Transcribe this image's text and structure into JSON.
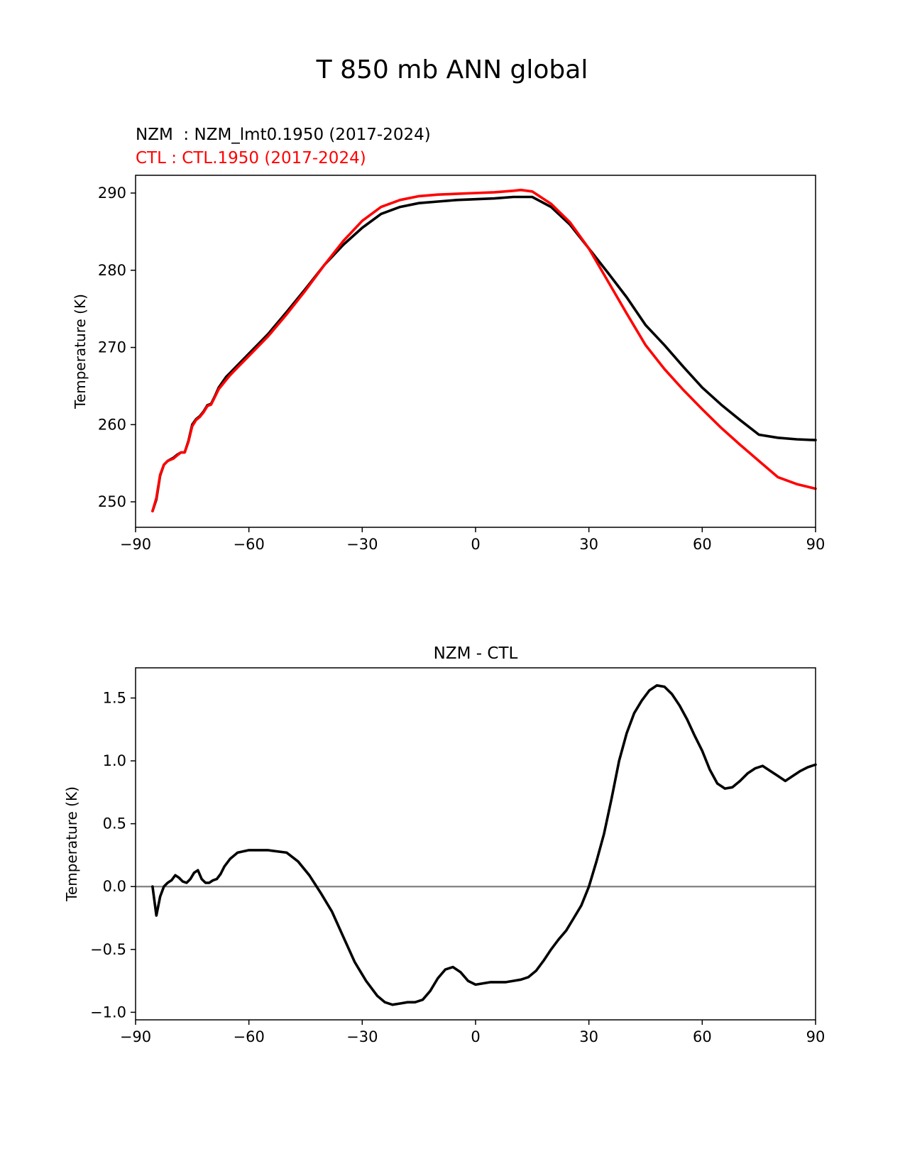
{
  "figure": {
    "title": "T 850 mb ANN global"
  },
  "chart_data": [
    {
      "type": "line",
      "legend": [
        {
          "label": "NZM  : NZM_lmt0.1950 (2017-2024)",
          "color": "#000000"
        },
        {
          "label": "CTL : CTL.1950 (2017-2024)",
          "color": "#ff0000"
        }
      ],
      "ylabel": "Temperature (K)",
      "xlim": [
        -90,
        90
      ],
      "ylim": [
        246.7,
        292.3
      ],
      "xticks": [
        -90,
        -60,
        -30,
        0,
        30,
        60,
        90
      ],
      "xtick_labels": [
        "−90",
        "−60",
        "−30",
        "0",
        "30",
        "60",
        "90"
      ],
      "yticks": [
        250,
        260,
        270,
        280,
        290
      ],
      "ytick_labels": [
        "250",
        "260",
        "270",
        "280",
        "290"
      ],
      "series": [
        {
          "name": "CTL",
          "color": "#ff0000",
          "x": [
            -85.5,
            -84.5,
            -83.5,
            -82.5,
            -81.5,
            -80,
            -79,
            -78,
            -77,
            -76,
            -75,
            -74,
            -73,
            -72,
            -71,
            -70,
            -69,
            -68,
            -67,
            -66,
            -65,
            -63,
            -60,
            -55,
            -50,
            -45,
            -40,
            -35,
            -30,
            -25,
            -20,
            -15,
            -10,
            -5,
            0,
            5,
            10,
            12,
            15,
            20,
            25,
            30,
            35,
            40,
            45,
            50,
            55,
            60,
            65,
            70,
            75,
            80,
            85,
            90
          ],
          "y": [
            248.8,
            250.5,
            253.5,
            254.8,
            255.3,
            255.6,
            256.0,
            256.4,
            256.4,
            257.8,
            259.8,
            260.6,
            261.0,
            261.6,
            262.4,
            262.6,
            263.6,
            264.6,
            265.2,
            265.8,
            266.4,
            267.4,
            268.9,
            271.4,
            274.3,
            277.4,
            280.7,
            283.8,
            286.4,
            288.2,
            289.1,
            289.6,
            289.8,
            289.9,
            290.0,
            290.1,
            290.3,
            290.4,
            290.2,
            288.6,
            286.2,
            282.8,
            278.6,
            274.4,
            270.3,
            267.2,
            264.5,
            262.0,
            259.6,
            257.4,
            255.3,
            253.2,
            252.3,
            251.7
          ]
        },
        {
          "name": "NZM",
          "color": "#000000",
          "x": [
            -85.5,
            -84.5,
            -83.5,
            -82.5,
            -81.5,
            -80,
            -79,
            -78,
            -77,
            -76,
            -75,
            -74,
            -73,
            -72,
            -71,
            -70,
            -69,
            -68,
            -67,
            -66,
            -65,
            -63,
            -60,
            -55,
            -50,
            -45,
            -40,
            -35,
            -30,
            -25,
            -20,
            -15,
            -10,
            -5,
            0,
            5,
            10,
            12,
            15,
            20,
            25,
            30,
            35,
            40,
            45,
            50,
            55,
            60,
            65,
            70,
            75,
            80,
            85,
            90
          ],
          "y": [
            248.8,
            250.3,
            253.4,
            254.8,
            255.3,
            255.7,
            256.1,
            256.4,
            256.4,
            257.9,
            260.0,
            260.7,
            261.1,
            261.7,
            262.5,
            262.7,
            263.7,
            264.8,
            265.5,
            266.2,
            266.7,
            267.7,
            269.2,
            271.7,
            274.6,
            277.6,
            280.7,
            283.3,
            285.5,
            287.3,
            288.2,
            288.7,
            288.9,
            289.1,
            289.2,
            289.3,
            289.5,
            289.5,
            289.5,
            288.2,
            285.9,
            282.8,
            279.7,
            276.5,
            272.9,
            270.3,
            267.5,
            264.8,
            262.6,
            260.6,
            258.7,
            258.3,
            258.1,
            258.0
          ]
        }
      ]
    },
    {
      "type": "line",
      "title": "NZM - CTL",
      "ylabel": "Temperature (K)",
      "xlim": [
        -90,
        90
      ],
      "ylim": [
        -1.06,
        1.74
      ],
      "xticks": [
        -90,
        -60,
        -30,
        0,
        30,
        60,
        90
      ],
      "xtick_labels": [
        "−90",
        "−60",
        "−30",
        "0",
        "30",
        "60",
        "90"
      ],
      "yticks": [
        -1.0,
        -0.5,
        0.0,
        0.5,
        1.0,
        1.5
      ],
      "ytick_labels": [
        "−1.0",
        "−0.5",
        "0.0",
        "0.5",
        "1.0",
        "1.5"
      ],
      "reference_line": {
        "y": 0,
        "color": "#808080"
      },
      "series": [
        {
          "name": "NZM - CTL",
          "color": "#000000",
          "x": [
            -85.5,
            -84.5,
            -83.5,
            -82.5,
            -81.5,
            -80.5,
            -79.5,
            -78.5,
            -77.5,
            -76.5,
            -75.5,
            -74.5,
            -73.5,
            -72.5,
            -71.5,
            -70.5,
            -69.5,
            -68.5,
            -67.5,
            -66.5,
            -65,
            -63,
            -60,
            -55,
            -50,
            -47,
            -44,
            -41,
            -38,
            -35,
            -32,
            -29,
            -26,
            -24,
            -22,
            -20,
            -18,
            -16,
            -14,
            -12,
            -10,
            -8,
            -6,
            -4,
            -2,
            0,
            2,
            4,
            6,
            8,
            10,
            12,
            14,
            16,
            18,
            20,
            22,
            24,
            26,
            28,
            30,
            32,
            34,
            36,
            38,
            40,
            42,
            44,
            46,
            48,
            50,
            52,
            54,
            56,
            58,
            60,
            62,
            64,
            66,
            68,
            70,
            72,
            74,
            76,
            78,
            80,
            82,
            84,
            86,
            88,
            90
          ],
          "y": [
            0.0,
            -0.23,
            -0.08,
            0.0,
            0.03,
            0.05,
            0.09,
            0.07,
            0.04,
            0.03,
            0.06,
            0.11,
            0.13,
            0.06,
            0.03,
            0.03,
            0.05,
            0.06,
            0.1,
            0.16,
            0.22,
            0.27,
            0.29,
            0.29,
            0.27,
            0.2,
            0.09,
            -0.05,
            -0.2,
            -0.4,
            -0.6,
            -0.75,
            -0.87,
            -0.92,
            -0.94,
            -0.93,
            -0.92,
            -0.92,
            -0.9,
            -0.83,
            -0.73,
            -0.66,
            -0.64,
            -0.68,
            -0.75,
            -0.78,
            -0.77,
            -0.76,
            -0.76,
            -0.76,
            -0.75,
            -0.74,
            -0.72,
            -0.67,
            -0.59,
            -0.5,
            -0.42,
            -0.35,
            -0.25,
            -0.15,
            0.0,
            0.2,
            0.42,
            0.7,
            1.0,
            1.22,
            1.38,
            1.48,
            1.56,
            1.6,
            1.59,
            1.53,
            1.44,
            1.33,
            1.2,
            1.08,
            0.93,
            0.82,
            0.78,
            0.79,
            0.84,
            0.9,
            0.94,
            0.96,
            0.92,
            0.88,
            0.84,
            0.88,
            0.92,
            0.95,
            0.97
          ]
        }
      ]
    }
  ]
}
